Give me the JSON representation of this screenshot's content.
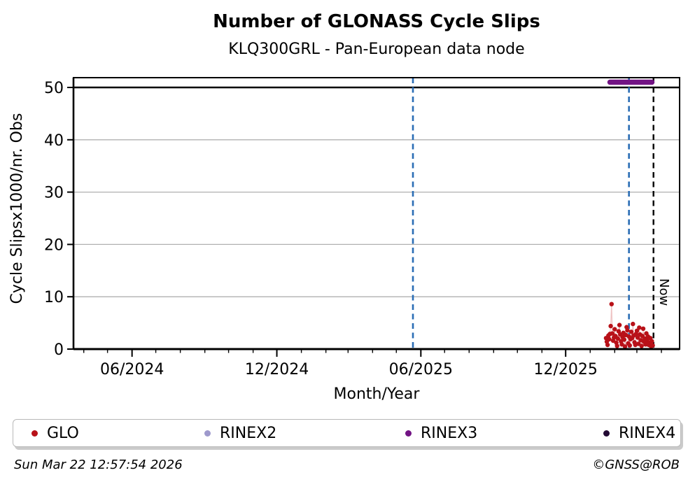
{
  "title": "Number of GLONASS Cycle Slips",
  "subtitle": "KLQ300GRL - Pan-European data node",
  "footer": {
    "timestamp": "Sun Mar 22 12:57:54 2026",
    "credit": "©GNSS@ROB"
  },
  "legend": {
    "items": [
      {
        "label": "GLO",
        "color": "#b81118"
      },
      {
        "label": "RINEX2",
        "color": "#9e99cc"
      },
      {
        "label": "RINEX3",
        "color": "#721384"
      },
      {
        "label": "RINEX4",
        "color": "#220a33"
      }
    ]
  },
  "chart_data": {
    "type": "scatter",
    "title": "Number of GLONASS Cycle Slips",
    "subtitle": "KLQ300GRL - Pan-European data node",
    "xlabel": "Month/Year",
    "ylabel": "Cycle Slipsx1000/nr. Obs",
    "x_domain": [
      "2024-03-19",
      "2026-04-24"
    ],
    "ylim": [
      0,
      51.87
    ],
    "y_ticks": [
      0,
      10,
      20,
      30,
      40,
      50
    ],
    "x_major_ticks": [
      {
        "date": "2024-06-01",
        "label": "06/2024"
      },
      {
        "date": "2024-12-01",
        "label": "12/2024"
      },
      {
        "date": "2025-06-01",
        "label": "06/2025"
      },
      {
        "date": "2025-12-01",
        "label": "12/2025"
      }
    ],
    "grid": "horizontal",
    "grid_color": "#b0b0b0",
    "threshold_line": {
      "value": 50,
      "color": "#000000"
    },
    "vlines": [
      {
        "date": "2025-05-22",
        "color": "#2a6db5",
        "style": "dashed"
      },
      {
        "date": "2026-02-19",
        "color": "#2a6db5",
        "style": "dashed"
      }
    ],
    "now_line": {
      "date": "2026-03-22",
      "label": "Now",
      "color": "#000000",
      "style": "dashed"
    },
    "series": [
      {
        "name": "GLO",
        "type": "scatter",
        "color": "#b81118",
        "connector_color": "#eec2c2",
        "points": [
          [
            "2026-01-21",
            2.1
          ],
          [
            "2026-01-22",
            1.4
          ],
          [
            "2026-01-23",
            0.8
          ],
          [
            "2026-01-24",
            2.6
          ],
          [
            "2026-01-25",
            1.9
          ],
          [
            "2026-01-26",
            2.9
          ],
          [
            "2026-01-27",
            4.4
          ],
          [
            "2026-01-28",
            8.6
          ],
          [
            "2026-01-29",
            3.0
          ],
          [
            "2026-01-30",
            1.6
          ],
          [
            "2026-01-31",
            2.2
          ],
          [
            "2026-02-01",
            3.8
          ],
          [
            "2026-02-02",
            2.5
          ],
          [
            "2026-02-03",
            1.2
          ],
          [
            "2026-02-04",
            0.6
          ],
          [
            "2026-02-05",
            2.0
          ],
          [
            "2026-02-06",
            3.4
          ],
          [
            "2026-02-07",
            4.6
          ],
          [
            "2026-02-08",
            2.8
          ],
          [
            "2026-02-09",
            1.5
          ],
          [
            "2026-02-10",
            0.9
          ],
          [
            "2026-02-11",
            2.3
          ],
          [
            "2026-02-12",
            3.1
          ],
          [
            "2026-02-13",
            1.8
          ],
          [
            "2026-02-14",
            0.5
          ],
          [
            "2026-02-15",
            2.7
          ],
          [
            "2026-02-16",
            4.2
          ],
          [
            "2026-02-17",
            3.6
          ],
          [
            "2026-02-18",
            1.1
          ],
          [
            "2026-02-19",
            2.4
          ],
          [
            "2026-02-20",
            0.7
          ],
          [
            "2026-02-21",
            1.9
          ],
          [
            "2026-02-22",
            3.3
          ],
          [
            "2026-02-23",
            2.1
          ],
          [
            "2026-02-24",
            4.8
          ],
          [
            "2026-02-25",
            2.6
          ],
          [
            "2026-02-26",
            1.3
          ],
          [
            "2026-02-27",
            0.8
          ],
          [
            "2026-02-28",
            2.9
          ],
          [
            "2026-03-01",
            3.5
          ],
          [
            "2026-03-02",
            2.2
          ],
          [
            "2026-03-03",
            1.0
          ],
          [
            "2026-03-04",
            4.1
          ],
          [
            "2026-03-05",
            2.8
          ],
          [
            "2026-03-06",
            1.7
          ],
          [
            "2026-03-07",
            0.6
          ],
          [
            "2026-03-08",
            2.5
          ],
          [
            "2026-03-09",
            3.9
          ],
          [
            "2026-03-10",
            1.4
          ],
          [
            "2026-03-11",
            2.0
          ],
          [
            "2026-03-12",
            0.9
          ],
          [
            "2026-03-13",
            3.0
          ],
          [
            "2026-03-14",
            1.6
          ],
          [
            "2026-03-15",
            2.4
          ],
          [
            "2026-03-16",
            0.8
          ],
          [
            "2026-03-17",
            1.2
          ],
          [
            "2026-03-18",
            2.1
          ],
          [
            "2026-03-19",
            0.5
          ],
          [
            "2026-03-20",
            1.5
          ],
          [
            "2026-03-21",
            0.7
          ]
        ]
      },
      {
        "name": "RINEX2",
        "type": "scatter",
        "color": "#9e99cc",
        "points": []
      },
      {
        "name": "RINEX3",
        "type": "line",
        "color": "#721384",
        "line_width": 7.5,
        "points": [
          [
            "2026-01-26",
            51
          ],
          [
            "2026-03-20",
            51
          ]
        ]
      },
      {
        "name": "RINEX4",
        "type": "scatter",
        "color": "#220a33",
        "points": []
      }
    ]
  }
}
